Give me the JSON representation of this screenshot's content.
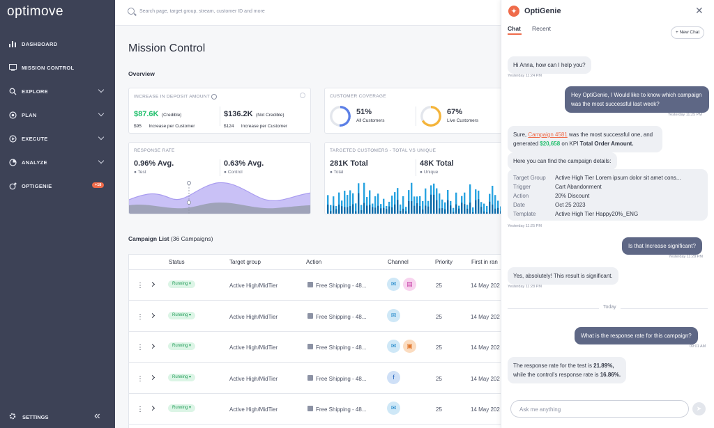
{
  "sidebar": {
    "logo": "optimove",
    "items": [
      {
        "label": "DASHBOARD",
        "icon": "bar-chart-icon",
        "glyph": "▮"
      },
      {
        "label": "MISSION CONTROL",
        "icon": "monitor-icon",
        "glyph": "▭"
      },
      {
        "label": "EXPLORE",
        "icon": "explore-icon",
        "glyph": "⚲"
      },
      {
        "label": "PLAN",
        "icon": "target-icon",
        "glyph": "◉"
      },
      {
        "label": "EXECUTE",
        "icon": "play-icon",
        "glyph": "▶"
      },
      {
        "label": "ANALYZE",
        "icon": "analyze-icon",
        "glyph": "◔"
      },
      {
        "label": "OPTIGENIE",
        "icon": "genie-icon",
        "glyph": "✦"
      }
    ],
    "optigenie_badge": "+18",
    "settings_label": "SETTINGS",
    "collapse_glyph": "«"
  },
  "search": {
    "placeholder": "Search page, target group, stream, customer ID and more"
  },
  "main": {
    "title": "Mission Control",
    "overview_label": "Overview",
    "deposit": {
      "title": "INCREASE IN DEPOSIT AMOUNT",
      "credible_value": "$87.6K",
      "credible_label": "(Credible)",
      "credible_per": "$95",
      "credible_per_label": "Increase per Customer",
      "noncred_value": "$136.2K",
      "noncred_label": "(Not Credible)",
      "noncred_per": "$124",
      "noncred_per_label": "Increase per Customer"
    },
    "coverage": {
      "title": "CUSTOMER COVERAGE",
      "all_value": "51%",
      "all_label": "All Customers",
      "all_fraction": 0.51,
      "live_value": "67%",
      "live_label": "Live Customers",
      "live_fraction": 0.67
    },
    "response": {
      "title": "RESPONSE RATE",
      "test_value": "0.96% Avg.",
      "test_label": "Test",
      "control_value": "0.63% Avg.",
      "control_label": "Control"
    },
    "targeted": {
      "title": "TARGETED CUSTOMERS - TOTAL VS UNIQUE",
      "total_value": "281K Total",
      "total_label": "Total",
      "unique_value": "48K Total",
      "unique_label": "Unique"
    },
    "campaign_list_label": "Campaign List",
    "campaign_count": "(36 Campaigns)",
    "table_headers": [
      "Status",
      "Target group",
      "Action",
      "Channel",
      "Priority",
      "First in ran"
    ],
    "rows": [
      {
        "status": "Running",
        "target": "Active High/MidTier",
        "action": "Free Shipping - 48...",
        "channels": [
          "email",
          "sms"
        ],
        "priority": "25",
        "date": "14 May 202"
      },
      {
        "status": "Running",
        "target": "Active High/MidTier",
        "action": "Free Shipping - 48...",
        "channels": [
          "email"
        ],
        "priority": "25",
        "date": "14 May 202"
      },
      {
        "status": "Running",
        "target": "Active High/MidTier",
        "action": "Free Shipping - 48...",
        "channels": [
          "email",
          "popup"
        ],
        "priority": "25",
        "date": "14 May 202"
      },
      {
        "status": "Running",
        "target": "Active High/MidTier",
        "action": "Free Shipping - 48...",
        "channels": [
          "facebook"
        ],
        "priority": "25",
        "date": "14 May 202"
      },
      {
        "status": "Running",
        "target": "Active High/MidTier",
        "action": "Free Shipping - 48...",
        "channels": [
          "email"
        ],
        "priority": "25",
        "date": "14 May 202"
      }
    ]
  },
  "chat": {
    "title": "OptiGenie",
    "tabs": [
      "Chat",
      "Recent"
    ],
    "new_chat": "+ New Chat",
    "messages": {
      "m1": "Hi Anna, how can I help you?",
      "t1": "Yesterday 11:24 PM",
      "m2": "Hey OptiGenie, I  Would like to know which campaign was the most successful last week?",
      "t2": "Yesterday 11:25 PM",
      "m3_pre": "Sure, ",
      "m3_link": "Campaign 4581",
      "m3_mid": " was the most successful one, and generated ",
      "m3_val": "$20,658",
      "m3_post1": " on KPI ",
      "m3_kpi": "Total Order Amount.",
      "m4": "Here you can find the campaign details:",
      "details": [
        {
          "k": "Target Group",
          "v": "Active High Tier Lorem ipsum dolor sit amet cons..."
        },
        {
          "k": "Trigger",
          "v": "Cart Abandonment"
        },
        {
          "k": "Action",
          "v": "20% Discount"
        },
        {
          "k": "Date",
          "v": "Oct 25 2023"
        },
        {
          "k": "Template",
          "v": "Active High Tier Happy20%_ENG"
        }
      ],
      "t3": "Yesterday 11:25 PM",
      "m5": "Is that Increase significant?",
      "t4": "Yesterday 11:28 PM",
      "m6": "Yes, absolutely! This result is significant.",
      "t5": "Yesterday 11:28 PM",
      "today": "Today",
      "m7": "What is the response rate for this campaign?",
      "t6": "09:01 AM",
      "m8_pre": "The response rate for the test is ",
      "m8_v1": "21.89%,",
      "m8_mid": "while the control's response rate is ",
      "m8_v2": "16.86%."
    },
    "input_placeholder": "Ask me anything"
  },
  "colors": {
    "sidebar": "#3d4256",
    "accent": "#ef6b4a",
    "success": "#1fbf6b",
    "chart_purple": "#a99cf0",
    "chart_blue": "#29a3e0"
  }
}
